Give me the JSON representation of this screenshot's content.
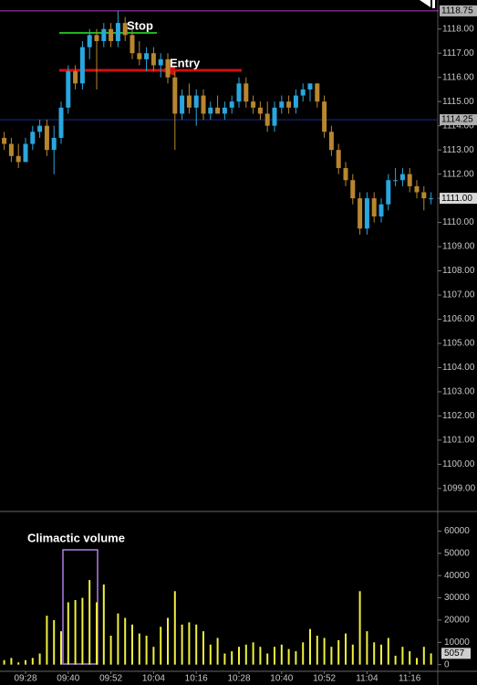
{
  "chart_data": [
    {
      "type": "candlestick",
      "categories": [
        null,
        null,
        null,
        "09:28",
        null,
        null,
        null,
        null,
        null,
        "09:40",
        null,
        null,
        null,
        null,
        null,
        "09:52",
        null,
        null,
        null,
        null,
        null,
        "10:04",
        null,
        null,
        null,
        null,
        null,
        "10:16",
        null,
        null,
        null,
        null,
        null,
        "10:28",
        null,
        null,
        null,
        null,
        null,
        "10:40",
        null,
        null,
        null,
        null,
        null,
        "10:52",
        null,
        null,
        null,
        null,
        null,
        "11:04",
        null,
        null,
        null,
        null,
        null,
        "11:16",
        null,
        null,
        null
      ],
      "open": [
        1113.5,
        1113.25,
        1112.75,
        1112.5,
        1113.25,
        1113.75,
        1114.0,
        1113.0,
        1113.5,
        1114.75,
        1116.25,
        1115.75,
        1117.25,
        1117.75,
        1117.5,
        1118.0,
        1117.5,
        1118.25,
        1117.75,
        1117.0,
        1116.75,
        1117.0,
        1116.5,
        1116.75,
        1116.0,
        1114.5,
        1115.25,
        1114.75,
        1115.25,
        1114.5,
        1114.75,
        1114.5,
        1114.75,
        1115.0,
        1115.75,
        1115.0,
        1114.75,
        1114.5,
        1114.0,
        1114.75,
        1115.0,
        1114.75,
        1115.25,
        1115.5,
        1115.75,
        1115.0,
        1113.75,
        1113.0,
        1112.25,
        1111.75,
        1111.0,
        1109.75,
        1111.0,
        1110.25,
        1110.75,
        1111.75,
        1111.75,
        1112.0,
        1111.5,
        1111.25,
        1111.0
      ],
      "high": [
        1113.75,
        1113.5,
        1113.25,
        1113.5,
        1114.0,
        1114.25,
        1114.25,
        1114.0,
        1115.0,
        1116.5,
        1116.5,
        1117.5,
        1118.0,
        1118.0,
        1118.25,
        1118.25,
        1118.75,
        1118.5,
        1118.0,
        1117.5,
        1117.25,
        1117.25,
        1117.0,
        1117.0,
        1116.25,
        1115.5,
        1115.75,
        1115.5,
        1115.5,
        1115.0,
        1115.25,
        1115.0,
        1115.25,
        1116.0,
        1116.0,
        1115.25,
        1115.0,
        1115.0,
        1115.0,
        1115.25,
        1115.25,
        1115.5,
        1115.75,
        1115.75,
        1115.75,
        1115.25,
        1114.0,
        1113.25,
        1112.5,
        1112.0,
        1111.25,
        1111.25,
        1111.25,
        1111.0,
        1112.0,
        1112.25,
        1112.25,
        1112.25,
        1111.75,
        1111.5,
        1111.25
      ],
      "low": [
        1113.0,
        1112.5,
        1112.25,
        1112.5,
        1113.0,
        1113.5,
        1112.75,
        1112.0,
        1113.25,
        1114.5,
        1115.5,
        1115.5,
        1116.75,
        1115.5,
        1117.25,
        1117.25,
        1117.25,
        1117.5,
        1116.75,
        1116.5,
        1116.25,
        1116.25,
        1116.0,
        1115.75,
        1113.0,
        1114.25,
        1114.5,
        1114.0,
        1114.25,
        1114.25,
        1114.5,
        1114.25,
        1114.5,
        1114.75,
        1114.75,
        1114.5,
        1114.25,
        1113.75,
        1113.75,
        1114.5,
        1114.5,
        1114.5,
        1115.0,
        1115.0,
        1114.75,
        1113.5,
        1112.75,
        1112.0,
        1111.5,
        1110.75,
        1109.5,
        1109.5,
        1110.0,
        1110.0,
        1110.5,
        1111.5,
        1111.5,
        1111.25,
        1111.0,
        1110.5,
        1110.75
      ],
      "close": [
        1113.25,
        1112.75,
        1112.5,
        1113.25,
        1113.75,
        1114.0,
        1113.0,
        1113.5,
        1114.75,
        1116.25,
        1115.75,
        1117.25,
        1117.75,
        1117.5,
        1118.0,
        1117.5,
        1118.25,
        1117.75,
        1117.0,
        1116.75,
        1117.0,
        1116.5,
        1116.75,
        1116.0,
        1114.5,
        1115.25,
        1114.75,
        1115.25,
        1114.5,
        1114.75,
        1114.5,
        1114.75,
        1115.0,
        1115.75,
        1115.0,
        1114.75,
        1114.5,
        1114.0,
        1114.75,
        1115.0,
        1114.75,
        1115.25,
        1115.5,
        1115.75,
        1115.0,
        1113.75,
        1113.0,
        1112.25,
        1111.75,
        1111.0,
        1109.75,
        1111.0,
        1110.25,
        1110.75,
        1111.75,
        1111.75,
        1112.0,
        1111.5,
        1111.25,
        1111.0,
        1111.0
      ],
      "up_color": "#2aa6de",
      "down_color": "#b8862f",
      "ylim": [
        1098.05,
        1119.2
      ],
      "yticks": [
        {
          "value": 1099,
          "label": "1099.00"
        },
        {
          "value": 1100,
          "label": "1100.00"
        },
        {
          "value": 1101,
          "label": "1101.00"
        },
        {
          "value": 1102,
          "label": "1102.00"
        },
        {
          "value": 1103,
          "label": "1103.00"
        },
        {
          "value": 1104,
          "label": "1104.00"
        },
        {
          "value": 1105,
          "label": "1105.00"
        },
        {
          "value": 1106,
          "label": "1106.00"
        },
        {
          "value": 1107,
          "label": "1107.00"
        },
        {
          "value": 1108,
          "label": "1108.00"
        },
        {
          "value": 1109,
          "label": "1109.00"
        },
        {
          "value": 1110,
          "label": "1110.00"
        },
        {
          "value": 1111,
          "label": "1111.00"
        },
        {
          "value": 1112,
          "label": "1112.00"
        },
        {
          "value": 1113,
          "label": "1113.00"
        },
        {
          "value": 1114,
          "label": "1114.00"
        },
        {
          "value": 1115,
          "label": "1115.00"
        },
        {
          "value": 1116,
          "label": "1116.00"
        },
        {
          "value": 1117,
          "label": "1117.00"
        },
        {
          "value": 1118,
          "label": "1118.00"
        }
      ],
      "price_lines": [
        {
          "value": 1118.75,
          "label": "1118.75",
          "color": "#b040c0"
        },
        {
          "value": 1114.25,
          "label": "1114.25",
          "color": "#1a2a8a"
        }
      ],
      "last_price": {
        "value": 1111,
        "label": "1111.00"
      },
      "annotations": [
        "Stop",
        "Entry"
      ]
    },
    {
      "type": "bar",
      "values": [
        2000,
        3000,
        1000,
        2000,
        3000,
        5000,
        22000,
        20000,
        15000,
        28000,
        29000,
        30000,
        38000,
        28000,
        36000,
        13000,
        23000,
        21000,
        18000,
        14000,
        13000,
        8000,
        17000,
        21000,
        33000,
        18000,
        19000,
        18000,
        15000,
        9000,
        12000,
        5000,
        6000,
        8000,
        9000,
        10000,
        8000,
        5000,
        8000,
        9000,
        7000,
        6000,
        10000,
        16000,
        13000,
        12000,
        8000,
        11000,
        14000,
        9000,
        33000,
        15000,
        10000,
        9000,
        12000,
        4000,
        8000,
        6000,
        3000,
        8000,
        5057
      ],
      "color": "#f0f040",
      "ylim": [
        -3000,
        68000
      ],
      "yticks": [
        0,
        10000,
        20000,
        30000,
        40000,
        50000,
        60000
      ],
      "annotation": "Climactic volume"
    }
  ]
}
